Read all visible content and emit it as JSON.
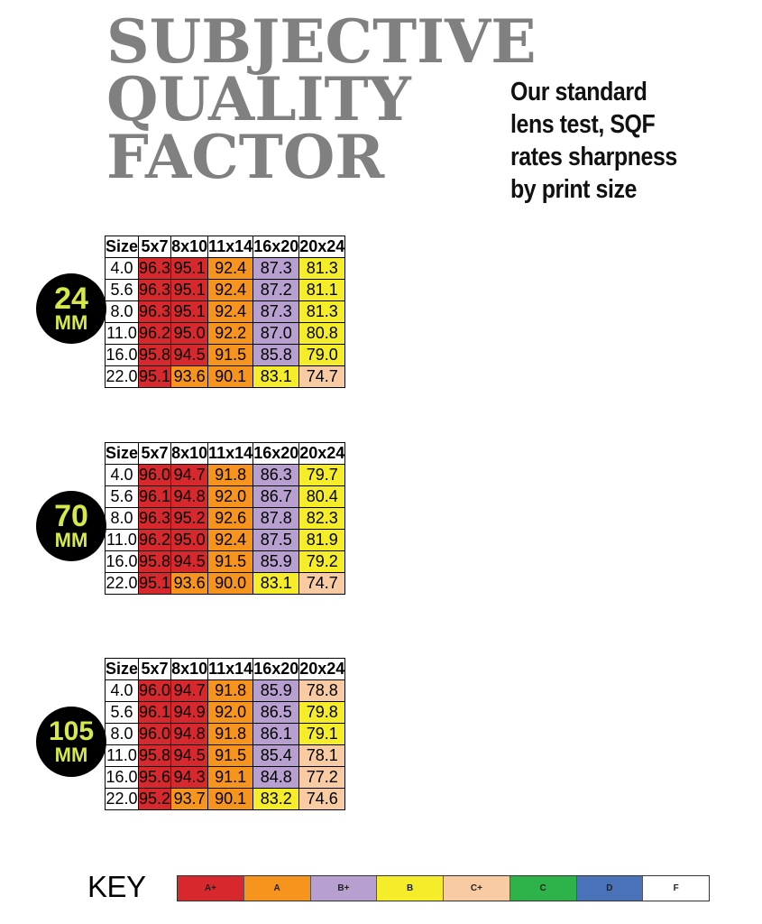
{
  "title_lines": [
    "SUBJECTIVE",
    "QUALITY",
    "FACTOR"
  ],
  "subtitle_lines": [
    "Our standard",
    "lens test, SQF",
    "rates sharpness",
    "by print size"
  ],
  "grade_colors": {
    "A+": "#d7282e",
    "A": "#f7941d",
    "B+": "#b79fcf",
    "B": "#f5ec2a",
    "C+": "#f9cba2",
    "C": "#2db34a",
    "D": "#4a72b8",
    "F": "#ffffff"
  },
  "sections": [
    {
      "badge": {
        "num": "24",
        "unit": "MM"
      },
      "headers": [
        "Size",
        "5x7",
        "8x10",
        "11x14",
        "16x20",
        "20x24"
      ],
      "rows": [
        {
          "size": "4.0",
          "cells": [
            {
              "v": "96.3",
              "g": "A+"
            },
            {
              "v": "95.1",
              "g": "A+"
            },
            {
              "v": "92.4",
              "g": "A"
            },
            {
              "v": "87.3",
              "g": "B+"
            },
            {
              "v": "81.3",
              "g": "B"
            }
          ]
        },
        {
          "size": "5.6",
          "cells": [
            {
              "v": "96.3",
              "g": "A+"
            },
            {
              "v": "95.1",
              "g": "A+"
            },
            {
              "v": "92.4",
              "g": "A"
            },
            {
              "v": "87.2",
              "g": "B+"
            },
            {
              "v": "81.1",
              "g": "B"
            }
          ]
        },
        {
          "size": "8.0",
          "cells": [
            {
              "v": "96.3",
              "g": "A+"
            },
            {
              "v": "95.1",
              "g": "A+"
            },
            {
              "v": "92.4",
              "g": "A"
            },
            {
              "v": "87.3",
              "g": "B+"
            },
            {
              "v": "81.3",
              "g": "B"
            }
          ]
        },
        {
          "size": "11.0",
          "cells": [
            {
              "v": "96.2",
              "g": "A+"
            },
            {
              "v": "95.0",
              "g": "A+"
            },
            {
              "v": "92.2",
              "g": "A"
            },
            {
              "v": "87.0",
              "g": "B+"
            },
            {
              "v": "80.8",
              "g": "B"
            }
          ]
        },
        {
          "size": "16.0",
          "cells": [
            {
              "v": "95.8",
              "g": "A+"
            },
            {
              "v": "94.5",
              "g": "A+"
            },
            {
              "v": "91.5",
              "g": "A"
            },
            {
              "v": "85.8",
              "g": "B+"
            },
            {
              "v": "79.0",
              "g": "B"
            }
          ]
        },
        {
          "size": "22.0",
          "cells": [
            {
              "v": "95.1",
              "g": "A+"
            },
            {
              "v": "93.6",
              "g": "A"
            },
            {
              "v": "90.1",
              "g": "A"
            },
            {
              "v": "83.1",
              "g": "B"
            },
            {
              "v": "74.7",
              "g": "C+"
            }
          ]
        }
      ]
    },
    {
      "badge": {
        "num": "70",
        "unit": "MM"
      },
      "headers": [
        "Size",
        "5x7",
        "8x10",
        "11x14",
        "16x20",
        "20x24"
      ],
      "rows": [
        {
          "size": "4.0",
          "cells": [
            {
              "v": "96.0",
              "g": "A+"
            },
            {
              "v": "94.7",
              "g": "A+"
            },
            {
              "v": "91.8",
              "g": "A"
            },
            {
              "v": "86.3",
              "g": "B+"
            },
            {
              "v": "79.7",
              "g": "B"
            }
          ]
        },
        {
          "size": "5.6",
          "cells": [
            {
              "v": "96.1",
              "g": "A+"
            },
            {
              "v": "94.8",
              "g": "A+"
            },
            {
              "v": "92.0",
              "g": "A"
            },
            {
              "v": "86.7",
              "g": "B+"
            },
            {
              "v": "80.4",
              "g": "B"
            }
          ]
        },
        {
          "size": "8.0",
          "cells": [
            {
              "v": "96.3",
              "g": "A+"
            },
            {
              "v": "95.2",
              "g": "A+"
            },
            {
              "v": "92.6",
              "g": "A"
            },
            {
              "v": "87.8",
              "g": "B+"
            },
            {
              "v": "82.3",
              "g": "B"
            }
          ]
        },
        {
          "size": "11.0",
          "cells": [
            {
              "v": "96.2",
              "g": "A+"
            },
            {
              "v": "95.0",
              "g": "A+"
            },
            {
              "v": "92.4",
              "g": "A"
            },
            {
              "v": "87.5",
              "g": "B+"
            },
            {
              "v": "81.9",
              "g": "B"
            }
          ]
        },
        {
          "size": "16.0",
          "cells": [
            {
              "v": "95.8",
              "g": "A+"
            },
            {
              "v": "94.5",
              "g": "A+"
            },
            {
              "v": "91.5",
              "g": "A"
            },
            {
              "v": "85.9",
              "g": "B+"
            },
            {
              "v": "79.2",
              "g": "B"
            }
          ]
        },
        {
          "size": "22.0",
          "cells": [
            {
              "v": "95.1",
              "g": "A+"
            },
            {
              "v": "93.6",
              "g": "A"
            },
            {
              "v": "90.0",
              "g": "A"
            },
            {
              "v": "83.1",
              "g": "B"
            },
            {
              "v": "74.7",
              "g": "C+"
            }
          ]
        }
      ]
    },
    {
      "badge": {
        "num": "105",
        "unit": "MM"
      },
      "headers": [
        "Size",
        "5x7",
        "8x10",
        "11x14",
        "16x20",
        "20x24"
      ],
      "rows": [
        {
          "size": "4.0",
          "cells": [
            {
              "v": "96.0",
              "g": "A+"
            },
            {
              "v": "94.7",
              "g": "A+"
            },
            {
              "v": "91.8",
              "g": "A"
            },
            {
              "v": "85.9",
              "g": "B+"
            },
            {
              "v": "78.8",
              "g": "C+"
            }
          ]
        },
        {
          "size": "5.6",
          "cells": [
            {
              "v": "96.1",
              "g": "A+"
            },
            {
              "v": "94.9",
              "g": "A+"
            },
            {
              "v": "92.0",
              "g": "A"
            },
            {
              "v": "86.5",
              "g": "B+"
            },
            {
              "v": "79.8",
              "g": "B"
            }
          ]
        },
        {
          "size": "8.0",
          "cells": [
            {
              "v": "96.0",
              "g": "A+"
            },
            {
              "v": "94.8",
              "g": "A+"
            },
            {
              "v": "91.8",
              "g": "A"
            },
            {
              "v": "86.1",
              "g": "B+"
            },
            {
              "v": "79.1",
              "g": "B"
            }
          ]
        },
        {
          "size": "11.0",
          "cells": [
            {
              "v": "95.8",
              "g": "A+"
            },
            {
              "v": "94.5",
              "g": "A+"
            },
            {
              "v": "91.5",
              "g": "A"
            },
            {
              "v": "85.4",
              "g": "B+"
            },
            {
              "v": "78.1",
              "g": "C+"
            }
          ]
        },
        {
          "size": "16.0",
          "cells": [
            {
              "v": "95.6",
              "g": "A+"
            },
            {
              "v": "94.3",
              "g": "A+"
            },
            {
              "v": "91.1",
              "g": "A"
            },
            {
              "v": "84.8",
              "g": "B+"
            },
            {
              "v": "77.2",
              "g": "C+"
            }
          ]
        },
        {
          "size": "22.0",
          "cells": [
            {
              "v": "95.2",
              "g": "A+"
            },
            {
              "v": "93.7",
              "g": "A"
            },
            {
              "v": "90.1",
              "g": "A"
            },
            {
              "v": "83.2",
              "g": "B"
            },
            {
              "v": "74.6",
              "g": "C+"
            }
          ]
        }
      ]
    }
  ],
  "key": {
    "label": "KEY",
    "items": [
      "A+",
      "A",
      "B+",
      "B",
      "C+",
      "C",
      "D",
      "F"
    ]
  }
}
